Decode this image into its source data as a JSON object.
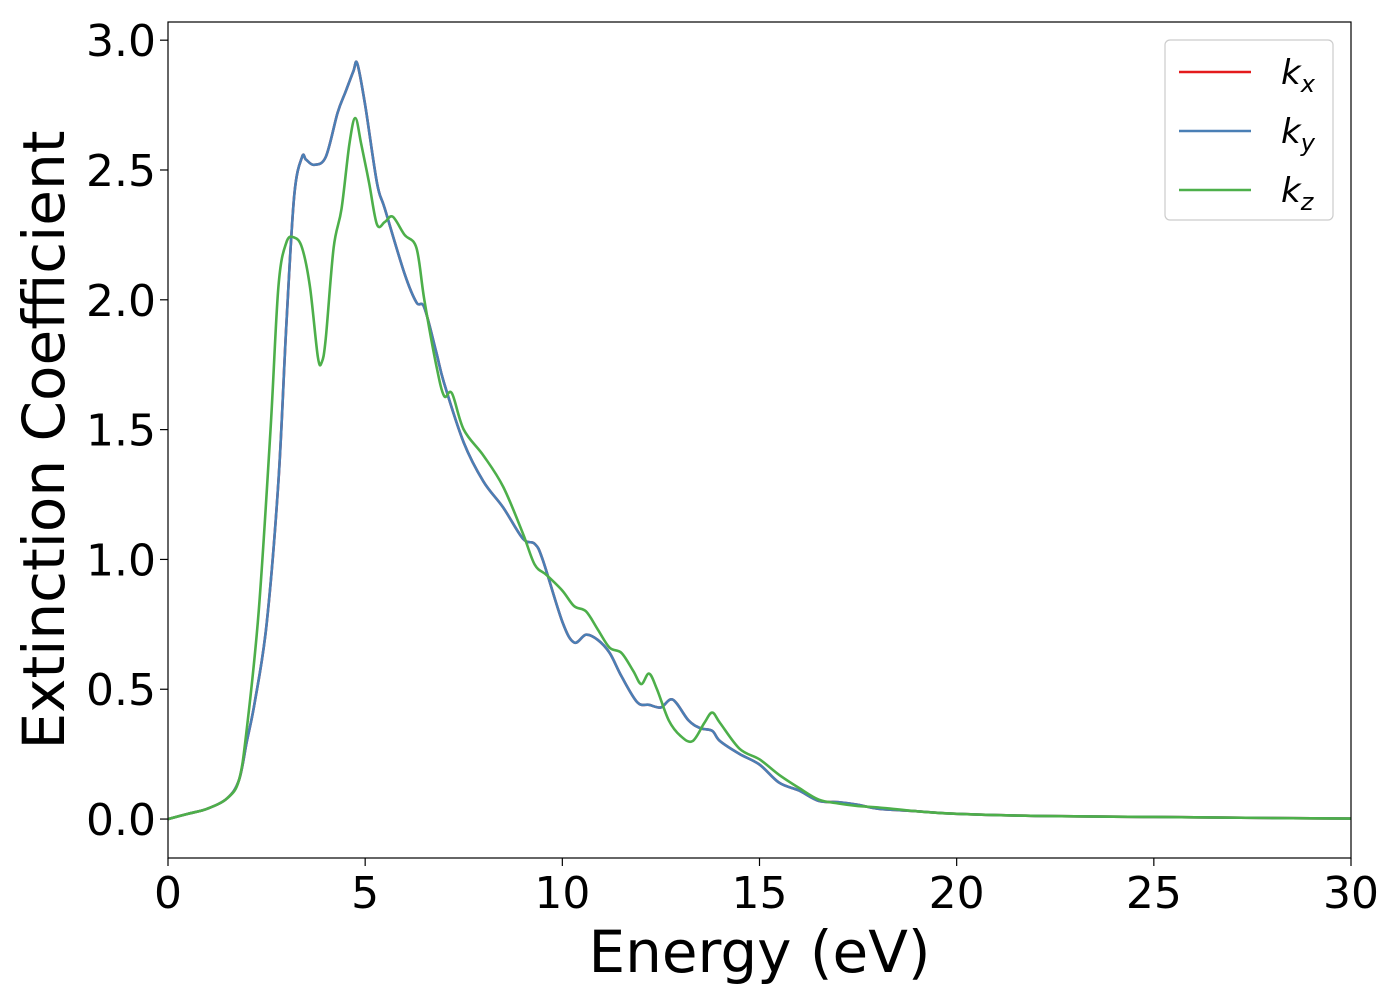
{
  "chart_data": {
    "type": "line",
    "title": "",
    "xlabel": "Energy (eV)",
    "ylabel": "Extinction Coefficient",
    "xlim": [
      0,
      30
    ],
    "ylim": [
      -0.15,
      3.07
    ],
    "grid": false,
    "legend_position": "top-right",
    "xticks": [
      0,
      5,
      10,
      15,
      20,
      25,
      30
    ],
    "xtick_labels": [
      "0",
      "5",
      "10",
      "15",
      "20",
      "25",
      "30"
    ],
    "yticks": [
      0.0,
      0.5,
      1.0,
      1.5,
      2.0,
      2.5,
      3.0
    ],
    "ytick_labels": [
      "0.0",
      "0.5",
      "1.0",
      "1.5",
      "2.0",
      "2.5",
      "3.0"
    ],
    "series": [
      {
        "name": "k_x",
        "label_main": "k",
        "label_sub": "x",
        "color": "#e41a1c",
        "x": [
          0,
          0.5,
          1.0,
          1.5,
          1.8,
          2.0,
          2.2,
          2.5,
          2.8,
          3.0,
          3.2,
          3.4,
          3.5,
          3.7,
          4.0,
          4.3,
          4.5,
          4.7,
          4.8,
          5.0,
          5.3,
          5.5,
          6.0,
          6.3,
          6.5,
          6.8,
          7.0,
          7.5,
          8.0,
          8.5,
          9.0,
          9.3,
          9.5,
          10.0,
          10.3,
          10.6,
          10.9,
          11.2,
          11.5,
          11.9,
          12.2,
          12.5,
          12.8,
          13.2,
          13.5,
          13.8,
          14.0,
          14.5,
          15.0,
          15.5,
          16.0,
          16.5,
          17.0,
          17.5,
          18.0,
          19.0,
          20.0,
          22.0,
          25.0,
          28.0,
          30.0
        ],
        "y": [
          0.0,
          0.02,
          0.04,
          0.08,
          0.15,
          0.3,
          0.45,
          0.75,
          1.3,
          1.9,
          2.4,
          2.55,
          2.54,
          2.52,
          2.55,
          2.72,
          2.8,
          2.88,
          2.91,
          2.75,
          2.45,
          2.35,
          2.1,
          1.99,
          1.97,
          1.8,
          1.68,
          1.45,
          1.3,
          1.2,
          1.08,
          1.06,
          1.0,
          0.76,
          0.68,
          0.71,
          0.69,
          0.64,
          0.55,
          0.45,
          0.44,
          0.43,
          0.46,
          0.38,
          0.35,
          0.34,
          0.3,
          0.25,
          0.21,
          0.14,
          0.11,
          0.07,
          0.065,
          0.055,
          0.04,
          0.03,
          0.02,
          0.012,
          0.008,
          0.004,
          0.002
        ]
      },
      {
        "name": "k_y",
        "label_main": "k",
        "label_sub": "y",
        "color": "#4a7fb5",
        "x": [
          0,
          0.5,
          1.0,
          1.5,
          1.8,
          2.0,
          2.2,
          2.5,
          2.8,
          3.0,
          3.2,
          3.4,
          3.5,
          3.7,
          4.0,
          4.3,
          4.5,
          4.7,
          4.8,
          5.0,
          5.3,
          5.5,
          6.0,
          6.3,
          6.5,
          6.8,
          7.0,
          7.5,
          8.0,
          8.5,
          9.0,
          9.3,
          9.5,
          10.0,
          10.3,
          10.6,
          10.9,
          11.2,
          11.5,
          11.9,
          12.2,
          12.5,
          12.8,
          13.2,
          13.5,
          13.8,
          14.0,
          14.5,
          15.0,
          15.5,
          16.0,
          16.5,
          17.0,
          17.5,
          18.0,
          19.0,
          20.0,
          22.0,
          25.0,
          28.0,
          30.0
        ],
        "y": [
          0.0,
          0.02,
          0.04,
          0.08,
          0.15,
          0.3,
          0.45,
          0.75,
          1.3,
          1.9,
          2.4,
          2.55,
          2.54,
          2.52,
          2.55,
          2.72,
          2.8,
          2.88,
          2.91,
          2.75,
          2.45,
          2.35,
          2.1,
          1.99,
          1.97,
          1.8,
          1.68,
          1.45,
          1.3,
          1.2,
          1.08,
          1.06,
          1.0,
          0.76,
          0.68,
          0.71,
          0.69,
          0.64,
          0.55,
          0.45,
          0.44,
          0.43,
          0.46,
          0.38,
          0.35,
          0.34,
          0.3,
          0.25,
          0.21,
          0.14,
          0.11,
          0.07,
          0.065,
          0.055,
          0.04,
          0.03,
          0.02,
          0.012,
          0.008,
          0.004,
          0.002
        ]
      },
      {
        "name": "k_z",
        "label_main": "k",
        "label_sub": "z",
        "color": "#4daf4a",
        "x": [
          0,
          0.5,
          1.0,
          1.5,
          1.8,
          2.0,
          2.3,
          2.6,
          2.8,
          3.0,
          3.2,
          3.4,
          3.6,
          3.8,
          3.9,
          4.0,
          4.2,
          4.4,
          4.6,
          4.75,
          4.9,
          5.1,
          5.3,
          5.5,
          5.7,
          6.0,
          6.3,
          6.5,
          6.8,
          7.0,
          7.2,
          7.5,
          8.0,
          8.5,
          9.0,
          9.3,
          9.6,
          10.0,
          10.3,
          10.6,
          10.9,
          11.2,
          11.5,
          11.8,
          12.0,
          12.2,
          12.4,
          12.7,
          13.0,
          13.3,
          13.6,
          13.8,
          14.0,
          14.5,
          15.0,
          15.5,
          16.0,
          16.5,
          17.0,
          17.5,
          18.0,
          19.0,
          20.0,
          22.0,
          25.0,
          28.0,
          30.0
        ],
        "y": [
          0.0,
          0.02,
          0.04,
          0.08,
          0.15,
          0.35,
          0.8,
          1.5,
          2.05,
          2.22,
          2.24,
          2.2,
          2.05,
          1.78,
          1.76,
          1.85,
          2.2,
          2.35,
          2.6,
          2.7,
          2.6,
          2.45,
          2.29,
          2.3,
          2.32,
          2.25,
          2.2,
          2.0,
          1.75,
          1.63,
          1.64,
          1.5,
          1.4,
          1.28,
          1.1,
          0.98,
          0.94,
          0.88,
          0.82,
          0.8,
          0.73,
          0.66,
          0.64,
          0.57,
          0.52,
          0.56,
          0.5,
          0.38,
          0.32,
          0.3,
          0.37,
          0.41,
          0.37,
          0.27,
          0.23,
          0.17,
          0.12,
          0.075,
          0.06,
          0.05,
          0.045,
          0.03,
          0.02,
          0.012,
          0.008,
          0.004,
          0.002
        ]
      }
    ]
  }
}
